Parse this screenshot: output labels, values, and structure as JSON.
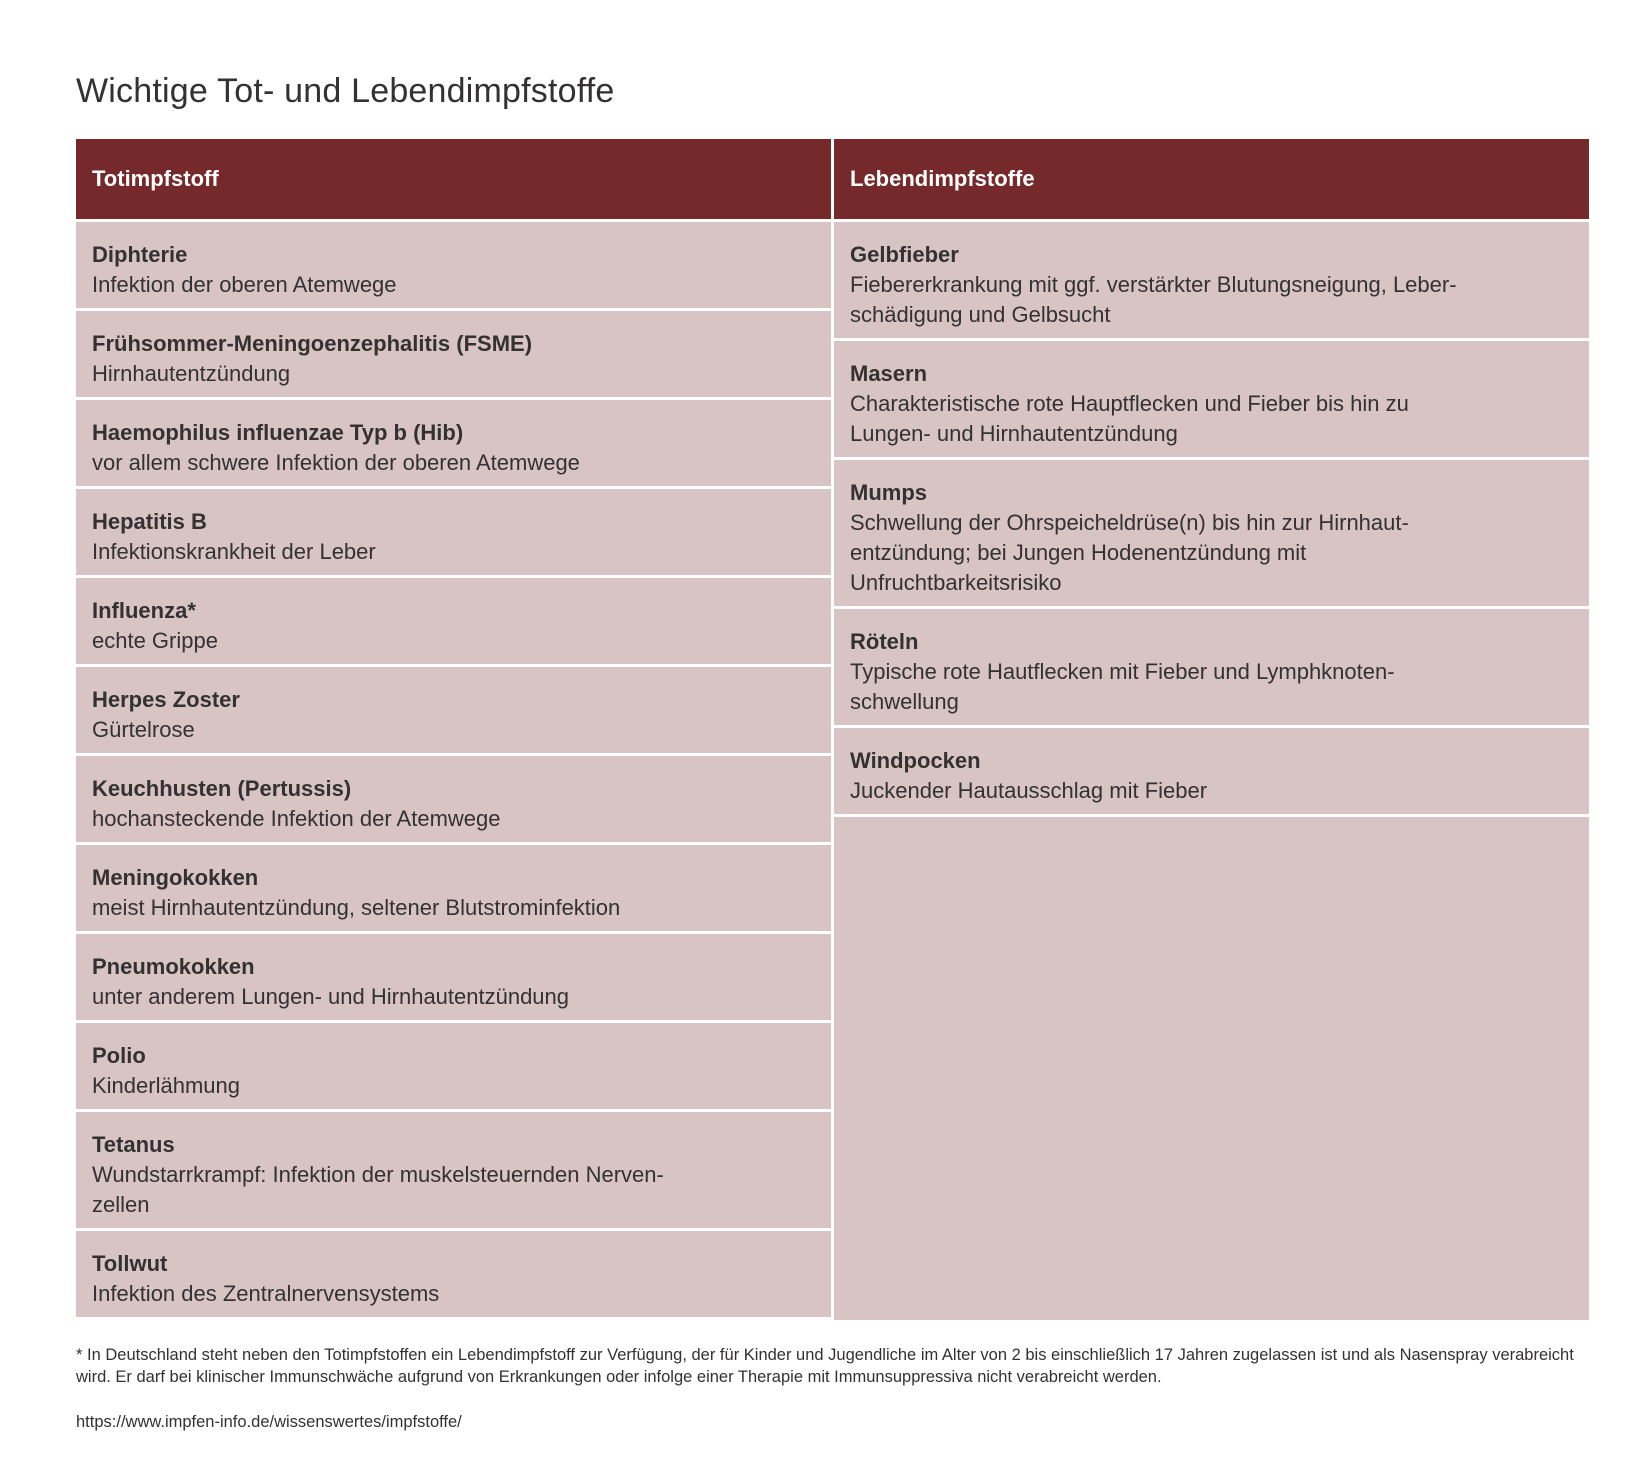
{
  "title": "Wichtige Tot- und Lebendimpfstoffe",
  "table": {
    "left_header": "Totimpfstoff",
    "right_header": "Lebendimpfstoffe",
    "left_rows": [
      {
        "name": "Diphterie",
        "desc": "Infektion der oberen Atemwege"
      },
      {
        "name": "Frühsommer-Meningoenzephalitis (FSME)",
        "desc": "Hirnhautentzündung"
      },
      {
        "name": "Haemophilus influenzae Typ b (Hib)",
        "desc": "vor allem schwere Infektion der oberen Atemwege"
      },
      {
        "name": "Hepatitis B",
        "desc": "Infektionskrankheit der Leber"
      },
      {
        "name": "Influenza*",
        "desc": "echte Grippe"
      },
      {
        "name": "Herpes Zoster",
        "desc": "Gürtelrose"
      },
      {
        "name": "Keuchhusten (Pertussis)",
        "desc": "hochansteckende Infektion der Atemwege"
      },
      {
        "name": "Meningokokken",
        "desc": "meist Hirnhautentzündung, seltener Blutstrominfektion"
      },
      {
        "name": "Pneumokokken",
        "desc": "unter anderem Lungen- und Hirnhautentzündung"
      },
      {
        "name": "Polio",
        "desc": "Kinderlähmung"
      },
      {
        "name": "Tetanus",
        "desc": "Wundstarrkrampf: Infektion der muskelsteuernden Nerven-\nzellen"
      },
      {
        "name": "Tollwut",
        "desc": "Infektion des Zentralnervensystems"
      }
    ],
    "right_rows": [
      {
        "name": "Gelbfieber",
        "desc": "Fiebererkrankung mit ggf. verstärkter Blutungsneigung, Leber-\nschädigung und Gelbsucht"
      },
      {
        "name": "Masern",
        "desc": "Charakteristische rote Hauptflecken und Fieber bis hin zu\nLungen- und Hirnhautentzündung"
      },
      {
        "name": "Mumps",
        "desc": "Schwellung der Ohrspeicheldrüse(n) bis hin zur Hirnhaut-\nentzündung; bei Jungen Hodenentzündung mit\nUnfruchtbarkeitsrisiko"
      },
      {
        "name": "Röteln",
        "desc": "Typische rote Hautflecken mit Fieber und Lymphknoten-\nschwellung"
      },
      {
        "name": "Windpocken",
        "desc": "Juckender Hautausschlag mit Fieber"
      }
    ]
  },
  "footnote": "* In Deutschland steht neben den Totimpfstoffen ein Lebendimpfstoff zur Verfügung, der für Kinder und Jugendliche im Alter von 2 bis einschließlich 17 Jahren zugelassen ist und als Nasenspray verabreicht wird. Er darf bei klinischer Immunschwäche aufgrund von Erkrankungen oder infolge einer Therapie mit Immunsuppressiva nicht verabreicht werden.",
  "source": "https://www.impfen-info.de/wissenswertes/impfstoffe/",
  "colors": {
    "header_bg": "#76292b",
    "cell_bg": "#d8c4c5",
    "text": "#333132"
  }
}
